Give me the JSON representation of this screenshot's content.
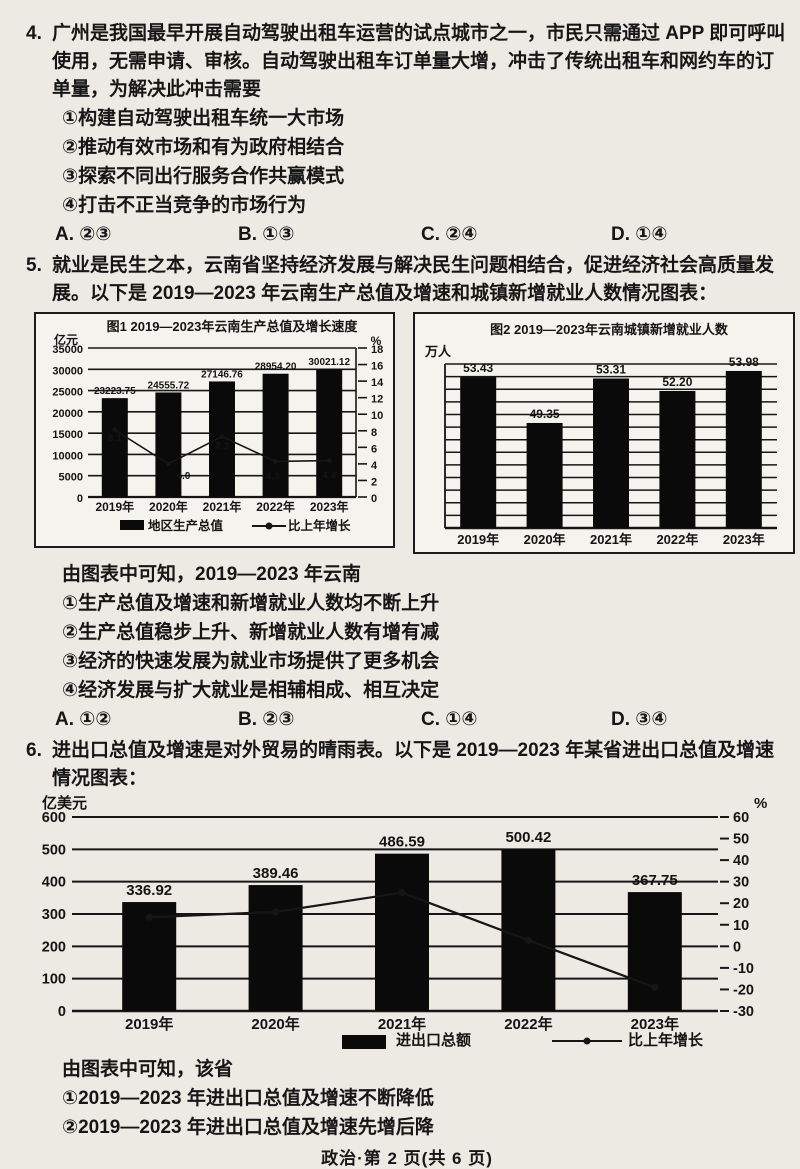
{
  "page": {
    "footer": "政治·第 2 页(共 6 页)",
    "ink": "#161616",
    "bar_color": "#0a0a0a"
  },
  "questions": [
    {
      "number": "4.",
      "stem": "广州是我国最早开展自动驾驶出租车运营的试点城市之一，市民只需通过 APP 即可呼叫使用，无需申请、审核。自动驾驶出租车订单量大增，冲击了传统出租车和网约车的订单量，为解决此冲击需要",
      "items": [
        "①构建自动驾驶出租车统一大市场",
        "②推动有效市场和有为政府相结合",
        "③探索不同出行服务合作共赢模式",
        "④打击不正当竞争的市场行为"
      ],
      "options": [
        "A. ②③",
        "B. ①③",
        "C. ②④",
        "D. ①④"
      ]
    },
    {
      "number": "5.",
      "stem": "就业是民生之本，云南省坚持经济发展与解决民生问题相结合，促进经济社会高质量发展。以下是 2019—2023 年云南生产总值及增速和城镇新增就业人数情况图表：",
      "lead": "由图表中可知，2019—2023 年云南",
      "items": [
        "①生产总值及增速和新增就业人数均不断上升",
        "②生产总值稳步上升、新增就业人数有增有减",
        "③经济的快速发展为就业市场提供了更多机会",
        "④经济发展与扩大就业是相辅相成、相互决定"
      ],
      "options": [
        "A. ①②",
        "B. ②③",
        "C. ①④",
        "D. ③④"
      ]
    },
    {
      "number": "6.",
      "stem": "进出口总值及增速是对外贸易的晴雨表。以下是 2019—2023 年某省进出口总值及增速情况图表：",
      "lead": "由图表中可知，该省",
      "items": [
        "①2019—2023 年进出口总值及增速不断降低",
        "②2019—2023 年进出口总值及增速先增后降"
      ]
    }
  ],
  "chart_data": [
    {
      "id": "fig1",
      "type": "bar+line",
      "title": "图1 2019—2023年云南生产总值及增长速度",
      "categories": [
        "2019年",
        "2020年",
        "2021年",
        "2022年",
        "2023年"
      ],
      "left_axis": {
        "label": "亿元",
        "ticks": [
          0,
          5000,
          10000,
          15000,
          20000,
          25000,
          30000,
          35000
        ],
        "range": [
          0,
          35000
        ]
      },
      "right_axis": {
        "label": "%",
        "ticks": [
          0,
          2,
          4,
          6,
          8,
          10,
          12,
          14,
          16,
          18
        ],
        "range": [
          0,
          18
        ]
      },
      "series": [
        {
          "name": "地区生产总值",
          "kind": "bar",
          "axis": "left",
          "values": [
            23223.75,
            24555.72,
            27146.76,
            28954.2,
            30021.12
          ],
          "labels": [
            "23223.75",
            "24555.72",
            "27146.76",
            "28954.20",
            "30021.12"
          ]
        },
        {
          "name": "比上年增长",
          "kind": "line",
          "axis": "right",
          "values": [
            8.1,
            4.0,
            7.3,
            4.3,
            4.4
          ],
          "labels": [
            "8.1",
            "4.0",
            "7.3",
            "4.3",
            "4.4"
          ]
        }
      ],
      "legend": [
        "地区生产总值",
        "比上年增长"
      ]
    },
    {
      "id": "fig2",
      "type": "bar",
      "title": "图2 2019—2023年云南城镇新增就业人数",
      "categories": [
        "2019年",
        "2020年",
        "2021年",
        "2022年",
        "2023年"
      ],
      "left_axis": {
        "label": "万人",
        "ticks_labeled": false,
        "range_estimated": [
          40,
          54.6
        ]
      },
      "series": [
        {
          "name": "城镇新增就业人数",
          "kind": "bar",
          "axis": "left",
          "values": [
            53.43,
            49.35,
            53.31,
            52.2,
            53.98
          ],
          "labels": [
            "53.43",
            "49.35",
            "53.31",
            "52.20",
            "53.98"
          ]
        }
      ],
      "legend": []
    },
    {
      "id": "fig3",
      "type": "bar+line",
      "title": "",
      "categories": [
        "2019年",
        "2020年",
        "2021年",
        "2022年",
        "2023年"
      ],
      "left_axis": {
        "label": "亿美元",
        "ticks": [
          0,
          100,
          200,
          300,
          400,
          500,
          600
        ],
        "range": [
          0,
          600
        ]
      },
      "right_axis": {
        "label": "%",
        "ticks": [
          -30,
          -20,
          -10,
          0,
          10,
          20,
          30,
          40,
          50,
          60
        ],
        "range": [
          -30,
          60
        ]
      },
      "series": [
        {
          "name": "进出口总额",
          "kind": "bar",
          "axis": "left",
          "values": [
            336.92,
            389.46,
            486.59,
            500.42,
            367.75
          ],
          "labels": [
            "336.92",
            "389.46",
            "486.59",
            "500.42",
            "367.75"
          ]
        },
        {
          "name": "比上年增长",
          "kind": "line",
          "axis": "right",
          "values": [
            13.5,
            16,
            24.9,
            2.8,
            -19
          ],
          "values_estimated": true,
          "labels": []
        }
      ],
      "legend": [
        "进出口总额",
        "比上年增长"
      ]
    }
  ]
}
